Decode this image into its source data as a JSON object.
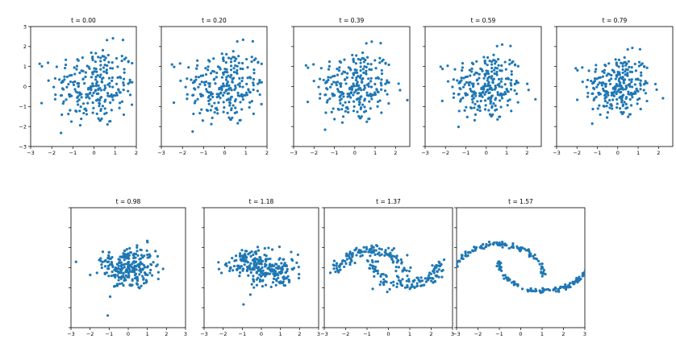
{
  "chart_data": [
    {
      "type": "scatter",
      "title": "t = 0.00",
      "xlim": [
        -3,
        2
      ],
      "ylim": [
        -3,
        3
      ],
      "x_ticks": [
        "−3",
        "−2",
        "−1",
        "0",
        "1",
        "2"
      ],
      "y_ticks": [
        "−3",
        "−2",
        "−1",
        "0",
        "1",
        "2",
        "3"
      ],
      "shape": "gaussian",
      "spread": 1.0,
      "color": "#1f77b4"
    },
    {
      "type": "scatter",
      "title": "t = 0.20",
      "xlim": [
        -3,
        2
      ],
      "ylim": [
        -3,
        3
      ],
      "x_ticks": [
        "−3",
        "−2",
        "−1",
        "0",
        "1",
        "2"
      ],
      "y_ticks": [],
      "shape": "gaussian",
      "spread": 0.97,
      "color": "#1f77b4"
    },
    {
      "type": "scatter",
      "title": "t = 0.39",
      "xlim": [
        -3,
        2.7
      ],
      "ylim": [
        -3,
        3
      ],
      "x_ticks": [
        "−3",
        "−2",
        "−1",
        "0",
        "1",
        "2"
      ],
      "y_ticks": [],
      "shape": "gaussian",
      "spread": 0.93,
      "color": "#1f77b4"
    },
    {
      "type": "scatter",
      "title": "t = 0.59",
      "xlim": [
        -3,
        2.7
      ],
      "ylim": [
        -3,
        3
      ],
      "x_ticks": [
        "−3",
        "−2",
        "−1",
        "0",
        "1",
        "2"
      ],
      "y_ticks": [],
      "shape": "gaussian",
      "spread": 0.87,
      "color": "#1f77b4"
    },
    {
      "type": "scatter",
      "title": "t = 0.79",
      "xlim": [
        -3,
        2.7
      ],
      "ylim": [
        -3,
        3
      ],
      "x_ticks": [
        "−3",
        "−2",
        "−1",
        "0",
        "1",
        "2"
      ],
      "y_ticks": [],
      "shape": "gaussian",
      "spread": 0.8,
      "color": "#1f77b4"
    },
    {
      "type": "scatter",
      "title": "t = 0.98",
      "xlim": [
        -3,
        3
      ],
      "ylim": [
        -3,
        3
      ],
      "x_ticks": [
        "−3",
        "−2",
        "−1",
        "0",
        "1",
        "2",
        "3"
      ],
      "y_ticks": [],
      "shape": "blend",
      "blend": 0.15,
      "color": "#1f77b4"
    },
    {
      "type": "scatter",
      "title": "t = 1.18",
      "xlim": [
        -3,
        3
      ],
      "ylim": [
        -3,
        3
      ],
      "x_ticks": [
        "−3",
        "−2",
        "−1",
        "0",
        "1",
        "2",
        "3"
      ],
      "y_ticks": [],
      "shape": "blend",
      "blend": 0.4,
      "color": "#1f77b4"
    },
    {
      "type": "scatter",
      "title": "t = 1.37",
      "xlim": [
        -3,
        3
      ],
      "ylim": [
        -3,
        3
      ],
      "x_ticks": [
        "−3",
        "−2",
        "−1",
        "0",
        "1",
        "2",
        "3"
      ],
      "y_ticks": [],
      "shape": "blend",
      "blend": 0.75,
      "color": "#1f77b4"
    },
    {
      "type": "scatter",
      "title": "t = 1.57",
      "xlim": [
        -3,
        3
      ],
      "ylim": [
        -3,
        3
      ],
      "x_ticks": [
        "−3",
        "−2",
        "−1",
        "0",
        "1",
        "2",
        "3"
      ],
      "y_ticks": [],
      "shape": "moons",
      "blend": 1.0,
      "color": "#1f77b4"
    }
  ]
}
